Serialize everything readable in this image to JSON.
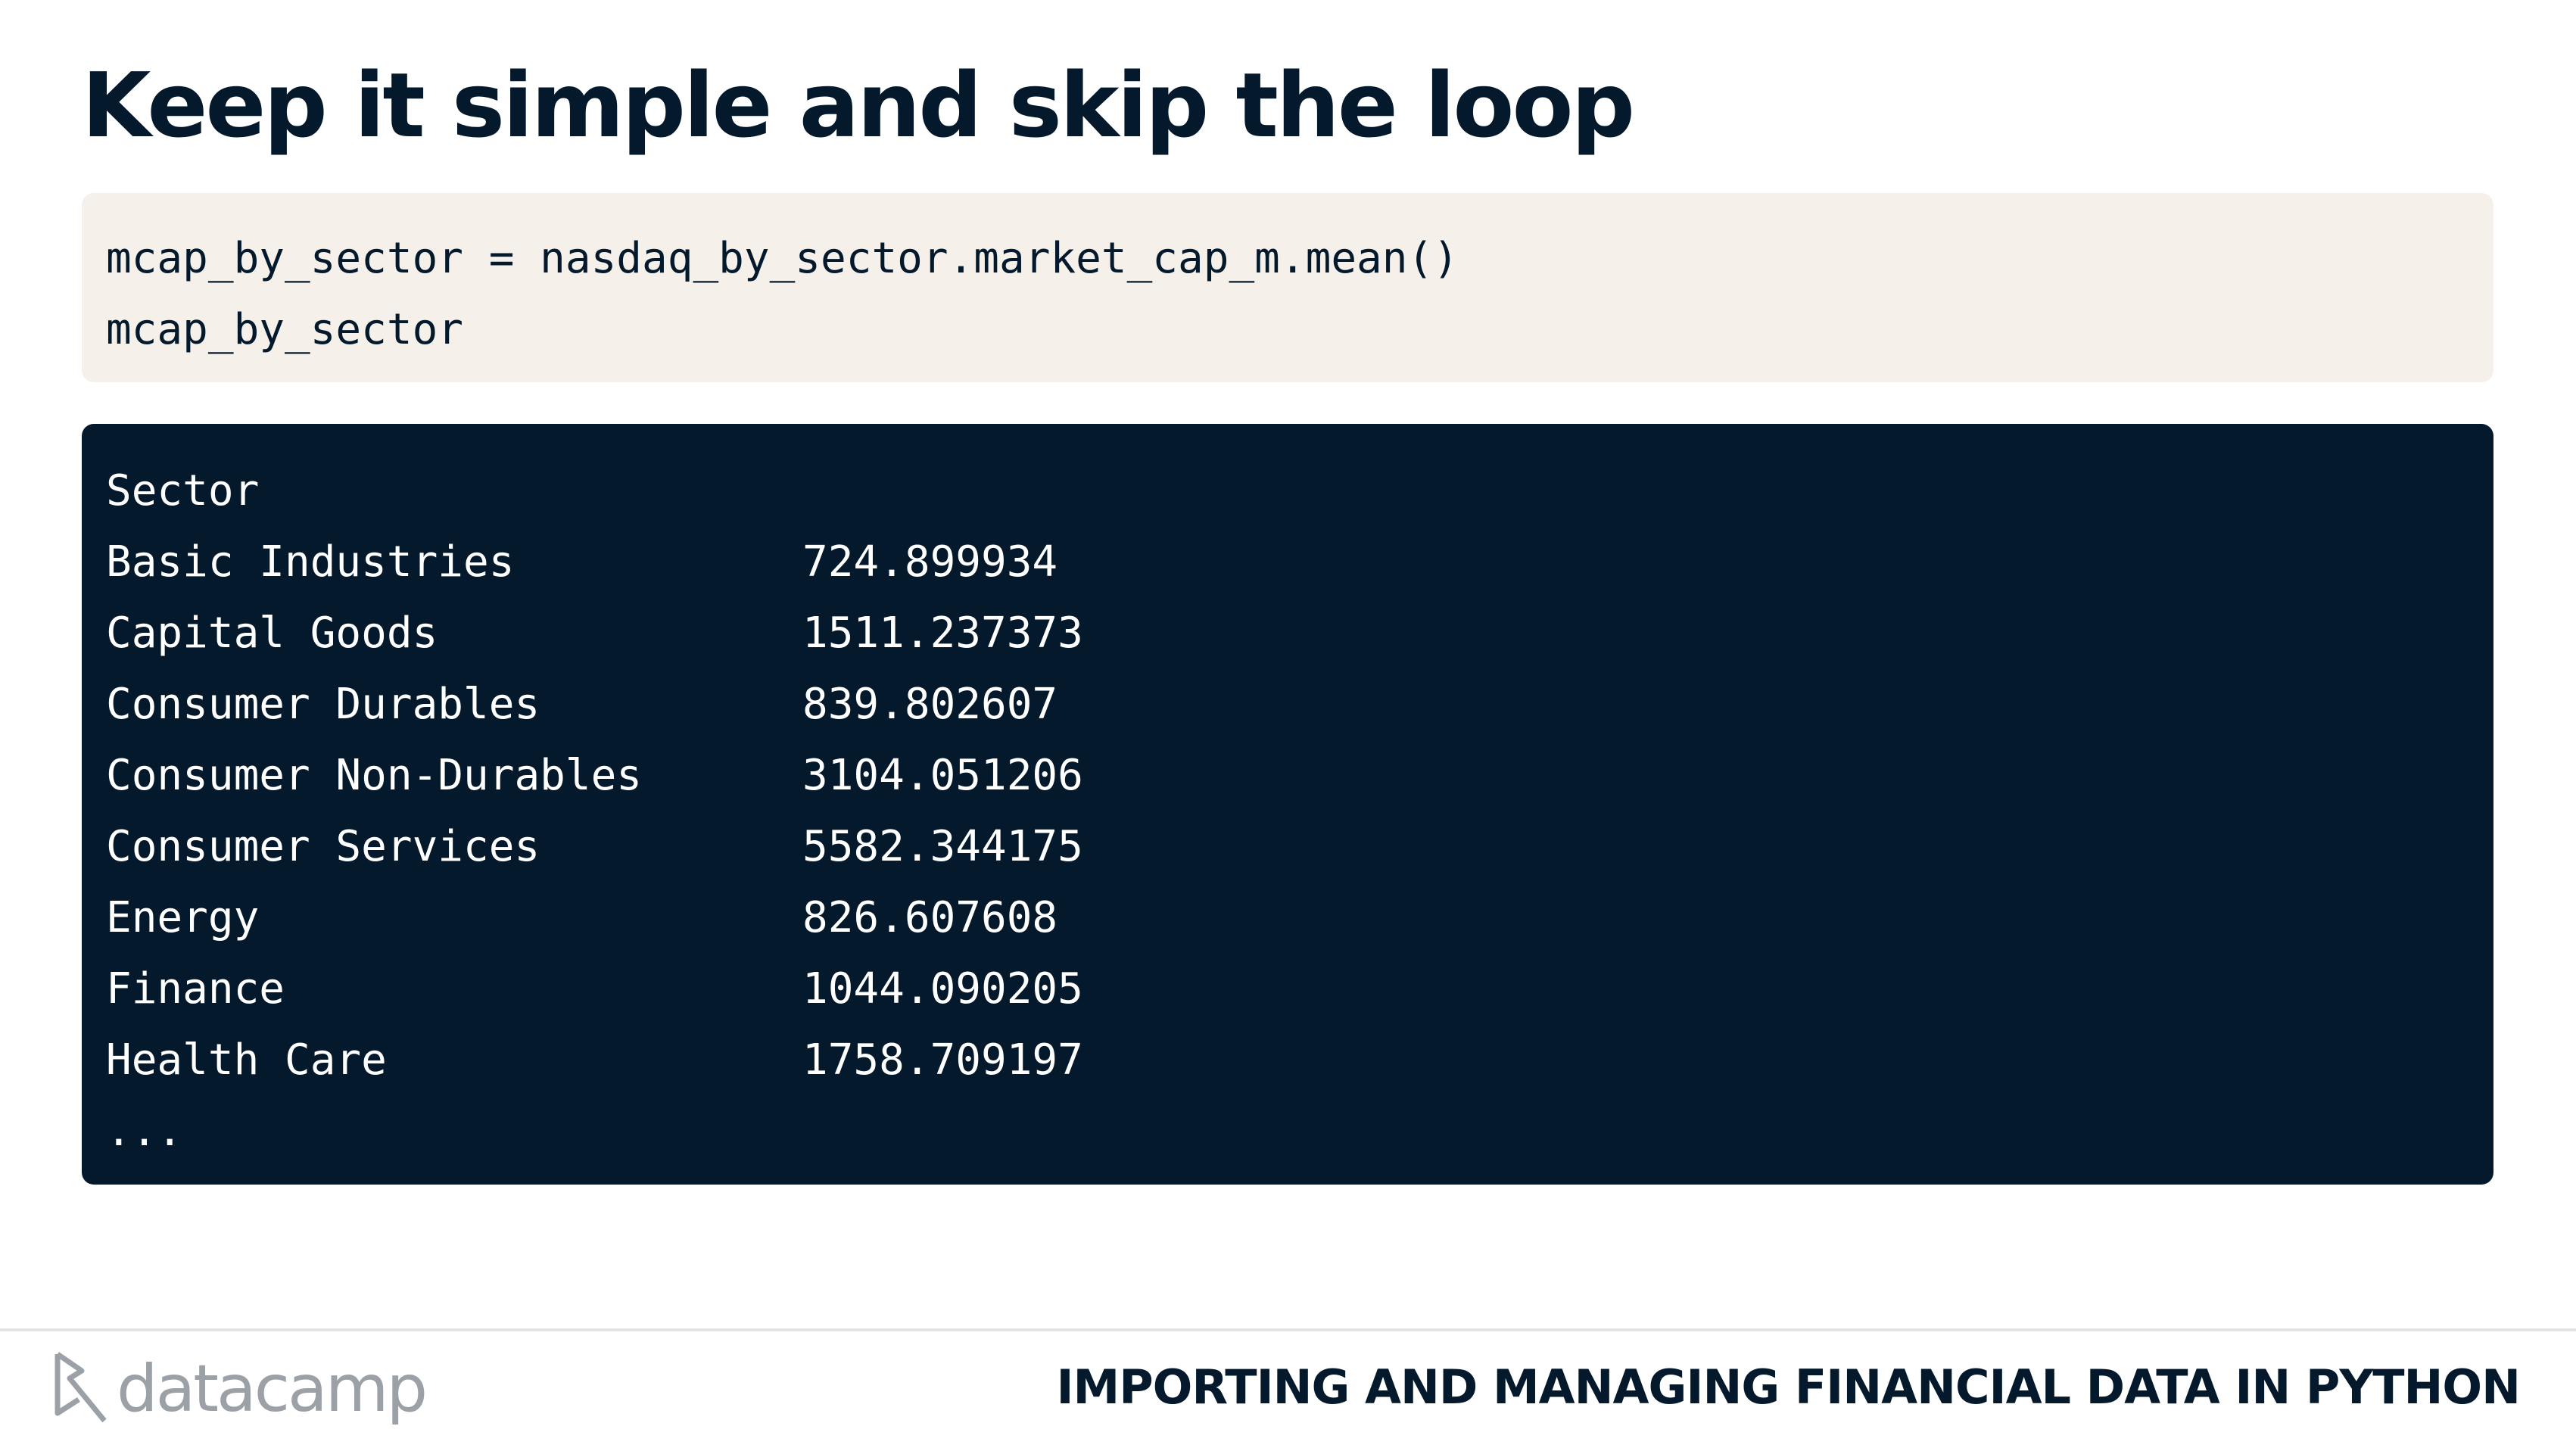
{
  "slide": {
    "title": "Keep it simple and skip the loop"
  },
  "code": {
    "lines": [
      "mcap_by_sector = nasdaq_by_sector.market_cap_m.mean()",
      "mcap_by_sector"
    ]
  },
  "output": {
    "header": "Sector",
    "rows": [
      {
        "label": "Basic Industries",
        "value": "724.899934"
      },
      {
        "label": "Capital Goods",
        "value": "1511.237373"
      },
      {
        "label": "Consumer Durables",
        "value": "839.802607"
      },
      {
        "label": "Consumer Non-Durables",
        "value": "3104.051206"
      },
      {
        "label": "Consumer Services",
        "value": "5582.344175"
      },
      {
        "label": "Energy",
        "value": "826.607608"
      },
      {
        "label": "Finance",
        "value": "1044.090205"
      },
      {
        "label": "Health Care",
        "value": "1758.709197"
      }
    ],
    "ellipsis": "..."
  },
  "footer": {
    "logo_text": "datacamp",
    "logo_icon": "datacamp-logo-icon",
    "course_title": "IMPORTING AND MANAGING FINANCIAL DATA IN PYTHON"
  },
  "colors": {
    "navy": "#05192d",
    "code_bg": "#f5f1ea",
    "logo_gray": "#9ba1a6"
  }
}
